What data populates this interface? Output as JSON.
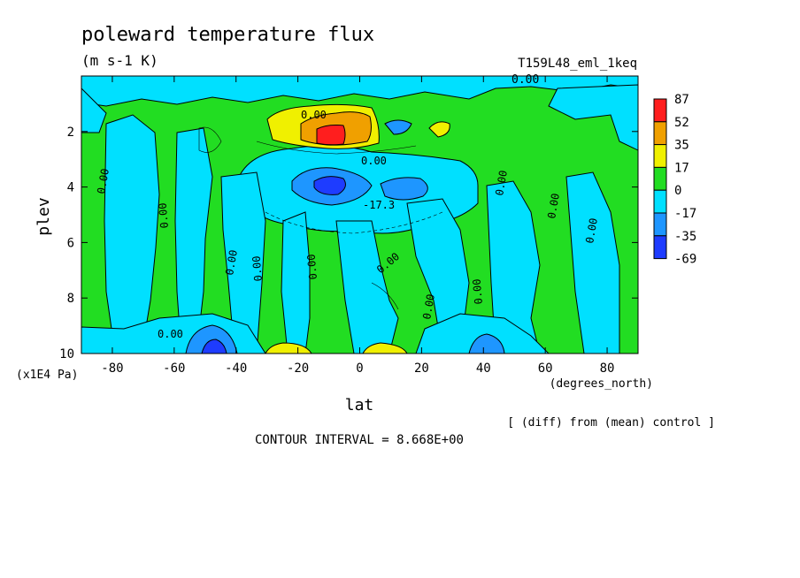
{
  "chart_data": {
    "type": "heatmap",
    "title": "poleward temperature flux",
    "units": "(m s-1 K)",
    "subtitle_right": "T159L48_eml_1keq",
    "xlabel": "lat",
    "xunits": "(degrees_north)",
    "ylabel": "plev",
    "yunits": "(x1E4 Pa)",
    "xlim": [
      -90,
      90
    ],
    "ylim": [
      0,
      10
    ],
    "y_inverted": true,
    "xticks": [
      "-80",
      "-60",
      "-40",
      "-20",
      "0",
      "20",
      "40",
      "60",
      "80"
    ],
    "yticks": [
      "2",
      "4",
      "6",
      "8",
      "10"
    ],
    "colorbar": {
      "labels": [
        "87",
        "52",
        "35",
        "17",
        "0",
        "-17",
        "-35",
        "-69"
      ],
      "colors": [
        "#ff1e1e",
        "#f0a000",
        "#f0f000",
        "#22dd22",
        "#00e0ff",
        "#1e96ff",
        "#1e3cff"
      ]
    },
    "contour_labels": [
      "0.00",
      "-17.3"
    ],
    "note": "[ (diff) from (mean) control ]",
    "contour_interval": "CONTOUR INTERVAL = 8.668E+00"
  }
}
